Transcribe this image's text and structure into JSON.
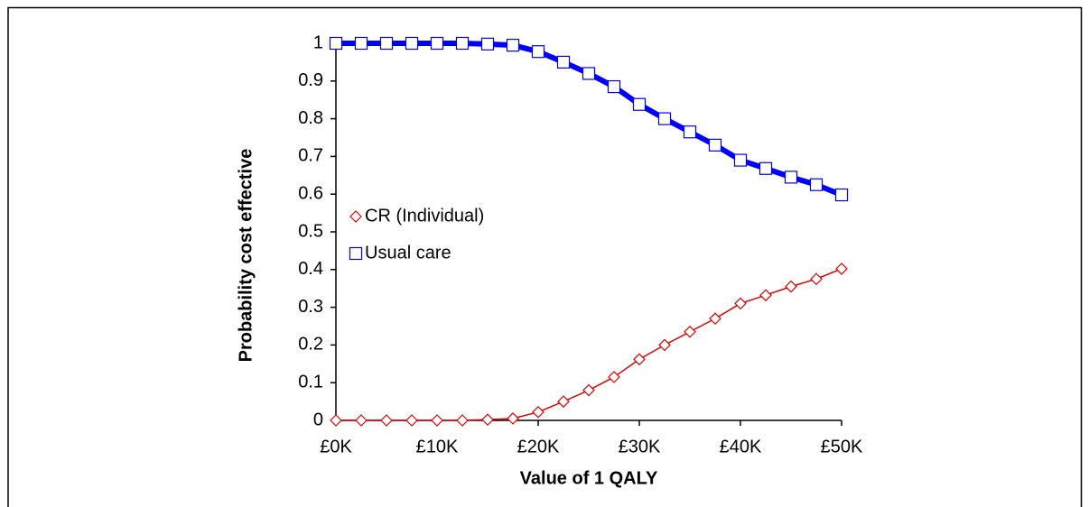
{
  "chart_data": {
    "type": "line",
    "xlabel": "Value of 1 QALY",
    "ylabel": "Probability cost effective",
    "x": [
      0,
      2500,
      5000,
      7500,
      10000,
      12500,
      15000,
      17500,
      20000,
      22500,
      25000,
      27500,
      30000,
      32500,
      35000,
      37500,
      40000,
      42500,
      45000,
      47500,
      50000
    ],
    "series": [
      {
        "name": "CR (Individual)",
        "color": "#e00000",
        "marker": "diamond",
        "line_width": 1.5,
        "values": [
          0,
          0,
          0,
          0,
          0,
          0,
          0.002,
          0.005,
          0.022,
          0.05,
          0.08,
          0.115,
          0.162,
          0.2,
          0.235,
          0.27,
          0.31,
          0.332,
          0.355,
          0.375,
          0.402
        ]
      },
      {
        "name": "Usual care",
        "color": "#0000ff",
        "marker": "square",
        "line_width": 6,
        "values": [
          1,
          1,
          1,
          1,
          1,
          1,
          0.998,
          0.995,
          0.978,
          0.95,
          0.92,
          0.885,
          0.838,
          0.8,
          0.765,
          0.73,
          0.69,
          0.668,
          0.645,
          0.625,
          0.598
        ]
      }
    ],
    "xlim": [
      0,
      50000
    ],
    "xticks": [
      {
        "value": 0,
        "label": "£0K"
      },
      {
        "value": 10000,
        "label": "£10K"
      },
      {
        "value": 20000,
        "label": "£20K"
      },
      {
        "value": 30000,
        "label": "£30K"
      },
      {
        "value": 40000,
        "label": "£40K"
      },
      {
        "value": 50000,
        "label": "£50K"
      }
    ],
    "ylim": [
      0,
      1
    ],
    "yticks": [
      0,
      0.1,
      0.2,
      0.3,
      0.4,
      0.5,
      0.6,
      0.7,
      0.8,
      0.9,
      1
    ],
    "legend": "left"
  }
}
